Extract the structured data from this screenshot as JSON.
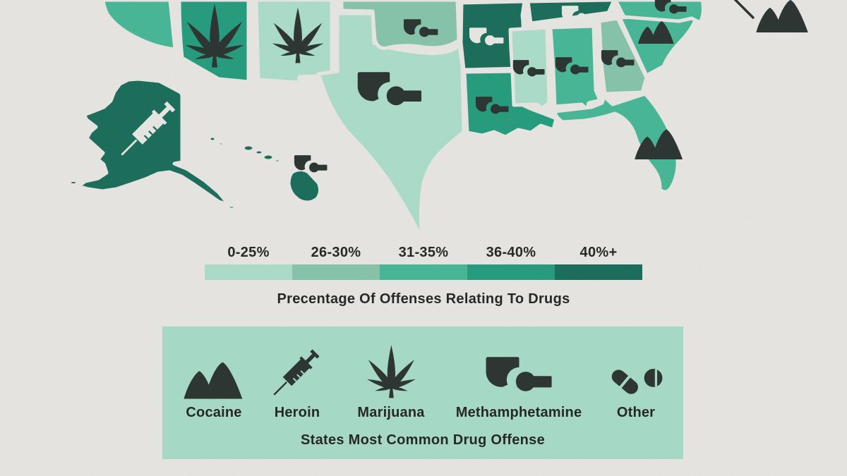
{
  "page": {
    "background": "#e9e8e5"
  },
  "legend_scale": {
    "labels": [
      "0-25%",
      "26-30%",
      "31-35%",
      "36-40%",
      "40%+"
    ],
    "colors": [
      "#abdecb",
      "#84c4ab",
      "#42b795",
      "#1f9b7b",
      "#146a57"
    ],
    "caption": "Precentage Of Offenses Relating To Drugs"
  },
  "legend_icons": {
    "background": "#a7dcc9",
    "caption": "States Most Common Drug Offense",
    "items": [
      {
        "icon": "cocaine",
        "label": "Cocaine"
      },
      {
        "icon": "heroin",
        "label": "Heroin"
      },
      {
        "icon": "marijuana",
        "label": "Marijuana"
      },
      {
        "icon": "methamphetamine",
        "label": "Methamphetamine"
      },
      {
        "icon": "other",
        "label": "Other"
      }
    ]
  },
  "map": {
    "icon_dark": "#262f2d",
    "icon_light": "#e9e9e5",
    "border_color": "#e9e8e5",
    "states": [
      {
        "id": "california",
        "category": "31-35%",
        "icon": null
      },
      {
        "id": "arizona",
        "category": "36-40%",
        "icon": "marijuana",
        "icon_shade": "dark"
      },
      {
        "id": "new-mexico",
        "category": "0-25%",
        "icon": "marijuana",
        "icon_shade": "dark"
      },
      {
        "id": "texas",
        "category": "0-25%",
        "icon": "methamphetamine",
        "icon_shade": "dark"
      },
      {
        "id": "oklahoma",
        "category": "26-30%",
        "icon": "methamphetamine",
        "icon_shade": "dark"
      },
      {
        "id": "arkansas",
        "category": "40%+",
        "icon": "methamphetamine",
        "icon_shade": "light"
      },
      {
        "id": "louisiana",
        "category": "36-40%",
        "icon": "methamphetamine",
        "icon_shade": "dark"
      },
      {
        "id": "mississippi",
        "category": "0-25%",
        "icon": "methamphetamine",
        "icon_shade": "dark"
      },
      {
        "id": "alabama",
        "category": "31-35%",
        "icon": "methamphetamine",
        "icon_shade": "dark"
      },
      {
        "id": "tennessee",
        "category": "40%+",
        "icon": "methamphetamine",
        "icon_shade": "light"
      },
      {
        "id": "georgia",
        "category": "26-30%",
        "icon": "methamphetamine",
        "icon_shade": "dark"
      },
      {
        "id": "south-carolina",
        "category": "31-35%",
        "icon": "cocaine",
        "icon_shade": "dark"
      },
      {
        "id": "north-carolina",
        "category": "31-35%",
        "icon": "methamphetamine",
        "icon_shade": "dark"
      },
      {
        "id": "florida",
        "category": "31-35%",
        "icon": "cocaine",
        "icon_shade": "dark"
      },
      {
        "id": "alaska",
        "category": "40%+",
        "icon": "heroin",
        "icon_shade": "light"
      },
      {
        "id": "hawaii",
        "category": "40%+",
        "icon": "methamphetamine",
        "icon_shade": "dark"
      }
    ],
    "callout": {
      "icon": "cocaine",
      "icon_shade": "dark"
    }
  }
}
